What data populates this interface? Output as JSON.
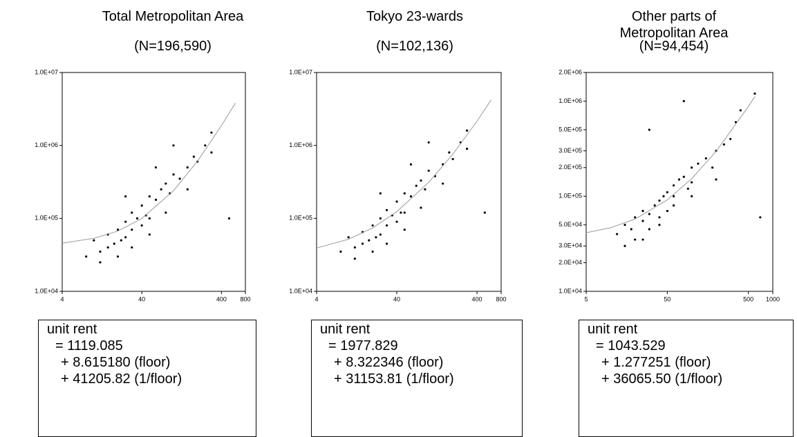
{
  "chart_data": [
    {
      "type": "scatter",
      "title": "Total Metropolitan Area",
      "subtitle": "(N=196,590)",
      "log_x": true,
      "log_y": true,
      "xlim": [
        4,
        800
      ],
      "xticks": [
        4,
        40,
        400,
        800
      ],
      "ylim": [
        10000,
        10000000
      ],
      "yticks": [
        {
          "value": 10000,
          "label": "1.0E+04"
        },
        {
          "value": 100000,
          "label": "1.0E+05"
        },
        {
          "value": 1000000,
          "label": "1.0E+06"
        },
        {
          "value": 10000000,
          "label": "1.0E+07"
        }
      ],
      "series": [
        {
          "style": "points",
          "color": "#000000",
          "x": [
            8,
            10,
            12,
            15,
            15,
            18,
            20,
            22,
            25,
            25,
            30,
            30,
            35,
            40,
            40,
            45,
            50,
            50,
            60,
            70,
            80,
            90,
            100,
            120,
            150,
            180,
            200,
            250,
            300,
            12,
            20,
            30,
            50,
            80,
            150,
            300,
            500,
            100,
            60,
            25
          ],
          "values": [
            30000,
            50000,
            35000,
            60000,
            40000,
            45000,
            70000,
            50000,
            90000,
            55000,
            120000,
            70000,
            100000,
            150000,
            80000,
            110000,
            200000,
            100000,
            180000,
            250000,
            300000,
            220000,
            400000,
            350000,
            500000,
            700000,
            600000,
            1000000,
            1500000,
            25000,
            30000,
            40000,
            60000,
            120000,
            250000,
            800000,
            100000,
            1000000,
            500000,
            200000
          ]
        },
        {
          "style": "line",
          "color": "#999999",
          "x": [
            4,
            10,
            20,
            40,
            100,
            200,
            400,
            600
          ],
          "values": [
            45800,
            53300,
            67000,
            99800,
            239000,
            610000,
            1867000,
            3810000
          ]
        }
      ],
      "equation": [
        "unit rent",
        "= 1119.085",
        "+ 8.615180 (floor)",
        "+ 41205.82 (1/floor)"
      ]
    },
    {
      "type": "scatter",
      "title": "Tokyo 23-wards",
      "subtitle": "(N=102,136)",
      "log_x": true,
      "log_y": true,
      "xlim": [
        4,
        800
      ],
      "xticks": [
        4,
        40,
        400,
        800
      ],
      "ylim": [
        10000,
        10000000
      ],
      "yticks": [
        {
          "value": 10000,
          "label": "1.0E+04"
        },
        {
          "value": 100000,
          "label": "1.0E+05"
        },
        {
          "value": 1000000,
          "label": "1.0E+06"
        },
        {
          "value": 10000000,
          "label": "1.0E+07"
        }
      ],
      "series": [
        {
          "style": "points",
          "color": "#000000",
          "x": [
            8,
            10,
            12,
            15,
            15,
            18,
            20,
            22,
            25,
            25,
            30,
            30,
            35,
            40,
            40,
            45,
            50,
            50,
            60,
            70,
            80,
            90,
            100,
            120,
            150,
            180,
            200,
            250,
            300,
            12,
            20,
            30,
            50,
            80,
            150,
            300,
            500,
            100,
            60,
            25
          ],
          "values": [
            35000,
            55000,
            40000,
            65000,
            45000,
            50000,
            80000,
            55000,
            100000,
            60000,
            130000,
            80000,
            110000,
            170000,
            90000,
            120000,
            220000,
            120000,
            200000,
            280000,
            330000,
            250000,
            450000,
            380000,
            550000,
            800000,
            650000,
            1100000,
            1600000,
            28000,
            35000,
            45000,
            70000,
            140000,
            300000,
            900000,
            120000,
            1100000,
            550000,
            220000
          ]
        },
        {
          "style": "line",
          "color": "#999999",
          "x": [
            4,
            10,
            20,
            40,
            100,
            200,
            400,
            600
          ],
          "values": [
            39200,
            51800,
            74000,
            123600,
            312000,
            759600,
            2154000,
            4210000
          ]
        }
      ],
      "equation": [
        "unit rent",
        "= 1977.829",
        "+ 8.322346 (floor)",
        "+ 31153.81 (1/floor)"
      ]
    },
    {
      "type": "scatter",
      "title": "Other parts of\nMetropolitan Area",
      "subtitle": "(N=94,454)",
      "log_x": true,
      "log_y": true,
      "xlim": [
        5,
        1000
      ],
      "xticks": [
        5,
        50,
        500,
        1000
      ],
      "ylim": [
        10000,
        2000000
      ],
      "yticks": [
        {
          "value": 10000,
          "label": "1.0E+04"
        },
        {
          "value": 20000,
          "label": "2.0E+04"
        },
        {
          "value": 30000,
          "label": "3.0E+04"
        },
        {
          "value": 50000,
          "label": "5.0E+04"
        },
        {
          "value": 100000,
          "label": "1.0E+05"
        },
        {
          "value": 200000,
          "label": "2.0E+05"
        },
        {
          "value": 300000,
          "label": "3.0E+05"
        },
        {
          "value": 500000,
          "label": "5.0E+05"
        },
        {
          "value": 1000000,
          "label": "1.0E+06"
        },
        {
          "value": 2000000,
          "label": "2.0E+06"
        }
      ],
      "series": [
        {
          "style": "points",
          "color": "#000000",
          "x": [
            12,
            15,
            18,
            20,
            20,
            25,
            25,
            30,
            30,
            35,
            40,
            40,
            45,
            50,
            50,
            60,
            60,
            70,
            80,
            90,
            100,
            100,
            120,
            150,
            180,
            200,
            250,
            300,
            350,
            15,
            25,
            40,
            60,
            100,
            200,
            400,
            600,
            700,
            30,
            80
          ],
          "values": [
            40000,
            50000,
            45000,
            60000,
            35000,
            55000,
            70000,
            65000,
            45000,
            80000,
            90000,
            60000,
            100000,
            110000,
            70000,
            130000,
            80000,
            150000,
            160000,
            120000,
            200000,
            140000,
            220000,
            250000,
            200000,
            300000,
            350000,
            400000,
            600000,
            30000,
            35000,
            50000,
            100000,
            100000,
            150000,
            800000,
            1200000,
            60000,
            500000,
            1000000
          ]
        },
        {
          "style": "line",
          "color": "#999999",
          "x": [
            5,
            10,
            20,
            50,
            100,
            200,
            500,
            600
          ],
          "values": [
            41300,
            46600,
            57400,
            91400,
            153000,
            296000,
            877000,
            1120000
          ]
        }
      ],
      "equation": [
        "unit rent",
        "= 1043.529",
        "+ 1.277251 (floor)",
        "+ 36065.50 (1/floor)"
      ]
    }
  ]
}
